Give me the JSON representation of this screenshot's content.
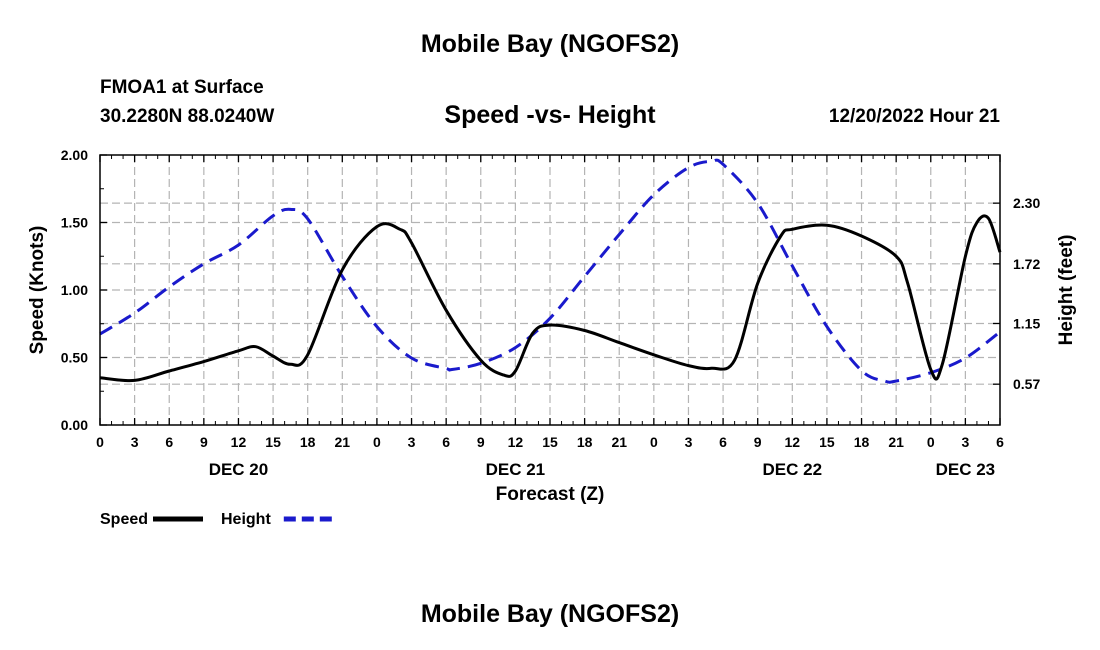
{
  "header": {
    "title": "Mobile Bay (NGOFS2)",
    "station": "FMOA1 at Surface",
    "coords": "30.2280N  88.0240W",
    "subtitle": "Speed -vs- Height",
    "datetime": "12/20/2022 Hour 21"
  },
  "footer": {
    "title": "Mobile Bay (NGOFS2)"
  },
  "chart_data": {
    "type": "line",
    "title": "Speed -vs- Height",
    "xlabel": "Forecast (Z)",
    "ylabel": "Speed (Knots)",
    "y2label": "Height (feet)",
    "xlim": [
      0,
      78
    ],
    "ylim": [
      0,
      2.0
    ],
    "y2lim": [
      0.18,
      2.76
    ],
    "grid": true,
    "x_ticks": [
      0,
      3,
      6,
      9,
      12,
      15,
      18,
      21,
      24,
      27,
      30,
      33,
      36,
      39,
      42,
      45,
      48,
      51,
      54,
      57,
      60,
      63,
      66,
      69,
      72,
      75,
      78
    ],
    "x_tick_labels": [
      "0",
      "3",
      "6",
      "9",
      "12",
      "15",
      "18",
      "21",
      "0",
      "3",
      "6",
      "9",
      "12",
      "15",
      "18",
      "21",
      "0",
      "3",
      "6",
      "9",
      "12",
      "15",
      "18",
      "21",
      "0",
      "3",
      "6"
    ],
    "date_labels": [
      {
        "x": 12,
        "label": "DEC 20"
      },
      {
        "x": 36,
        "label": "DEC 21"
      },
      {
        "x": 60,
        "label": "DEC 22"
      },
      {
        "x": 75,
        "label": "DEC 23"
      }
    ],
    "y_ticks": [
      0,
      0.5,
      1.0,
      1.5,
      2.0
    ],
    "y_tick_labels": [
      "0.00",
      "0.50",
      "1.00",
      "1.50",
      "2.00"
    ],
    "y2_ticks": [
      0.57,
      1.15,
      1.72,
      2.3
    ],
    "y2_tick_labels": [
      "0.57",
      "1.15",
      "1.72",
      "2.30"
    ],
    "legend": [
      {
        "name": "Speed",
        "color": "#000000",
        "dash": false
      },
      {
        "name": "Height",
        "color": "#1a1acc",
        "dash": true
      }
    ],
    "series": [
      {
        "name": "Speed",
        "axis": "left",
        "color": "#000000",
        "x": [
          0,
          3,
          6,
          9,
          12,
          13.5,
          15,
          16.5,
          18,
          21,
          24,
          26,
          27,
          30,
          33,
          35,
          36,
          37.5,
          39,
          42,
          45,
          48,
          51,
          53,
          55,
          57,
          59,
          60,
          63,
          66,
          69,
          70,
          72,
          73,
          75,
          76,
          77,
          78
        ],
        "y": [
          0.35,
          0.33,
          0.4,
          0.47,
          0.55,
          0.58,
          0.51,
          0.45,
          0.52,
          1.15,
          1.47,
          1.45,
          1.35,
          0.85,
          0.48,
          0.37,
          0.4,
          0.68,
          0.74,
          0.7,
          0.61,
          0.52,
          0.44,
          0.42,
          0.48,
          1.05,
          1.4,
          1.45,
          1.48,
          1.4,
          1.25,
          1.05,
          0.41,
          0.45,
          1.25,
          1.5,
          1.53,
          1.28
        ]
      },
      {
        "name": "Height",
        "axis": "right",
        "color": "#1a1acc",
        "x": [
          0,
          3,
          6,
          9,
          12,
          15,
          16.5,
          18,
          21,
          24,
          27,
          30,
          30.5,
          33,
          36,
          39,
          42,
          45,
          48,
          51,
          53,
          54,
          57,
          60,
          63,
          66,
          68,
          69,
          72,
          75,
          78
        ],
        "y": [
          1.05,
          1.25,
          1.5,
          1.72,
          1.9,
          2.18,
          2.24,
          2.15,
          1.6,
          1.12,
          0.82,
          0.72,
          0.71,
          0.77,
          0.92,
          1.2,
          1.6,
          2.0,
          2.38,
          2.64,
          2.7,
          2.67,
          2.3,
          1.7,
          1.12,
          0.7,
          0.6,
          0.6,
          0.68,
          0.82,
          1.07
        ]
      }
    ]
  }
}
